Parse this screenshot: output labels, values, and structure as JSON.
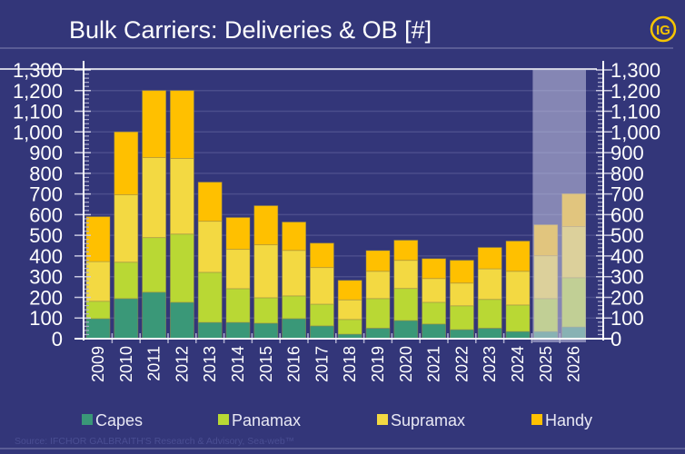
{
  "header": {
    "title": "Bulk Carriers: Deliveries & OB [#]",
    "logo_text": "IG"
  },
  "source": "Source: IFCHOR GALBRAITH'S  Research & Advisory, Sea-web™",
  "colors": {
    "background": "#333679",
    "Capes": "#3a9878",
    "Panamax": "#b9d834",
    "Supramax": "#f3d942",
    "Handy": "#ffc000",
    "projection_shade": "#c8c8e6"
  },
  "chart_data": {
    "type": "bar",
    "stacked": true,
    "title": "Bulk Carriers: Deliveries & OB [#]",
    "categories": [
      "2009",
      "2010",
      "2011",
      "2012",
      "2013",
      "2014",
      "2015",
      "2016",
      "2017",
      "2018",
      "2019",
      "2020",
      "2021",
      "2022",
      "2023",
      "2024",
      "2025",
      "2026"
    ],
    "projected_categories": [
      "2025",
      "2026"
    ],
    "series": [
      {
        "name": "Capes",
        "values": [
          97,
          194,
          225,
          176,
          79,
          79,
          75,
          97,
          62,
          22,
          51,
          88,
          71,
          44,
          51,
          35,
          35,
          57
        ]
      },
      {
        "name": "Panamax",
        "values": [
          84,
          176,
          264,
          330,
          242,
          163,
          123,
          110,
          105,
          71,
          143,
          155,
          105,
          115,
          139,
          128,
          159,
          238
        ]
      },
      {
        "name": "Supramax",
        "values": [
          192,
          326,
          387,
          366,
          247,
          190,
          256,
          220,
          177,
          95,
          132,
          136,
          115,
          110,
          148,
          163,
          207,
          247
        ]
      },
      {
        "name": "Handy",
        "values": [
          217,
          304,
          324,
          328,
          189,
          154,
          189,
          137,
          118,
          94,
          100,
          97,
          96,
          110,
          103,
          146,
          150,
          159
        ]
      }
    ],
    "ylim": [
      0,
      1300
    ],
    "yticks": [
      "0",
      "100",
      "200",
      "300",
      "400",
      "500",
      "600",
      "700",
      "800",
      "900",
      "1,000",
      "1,100",
      "1,200",
      "1,300"
    ],
    "ytick_values": [
      0,
      100,
      200,
      300,
      400,
      500,
      600,
      700,
      800,
      900,
      1000,
      1100,
      1200,
      1300
    ],
    "grid": true,
    "legend": "bottom",
    "secondary_y_axis": true
  }
}
